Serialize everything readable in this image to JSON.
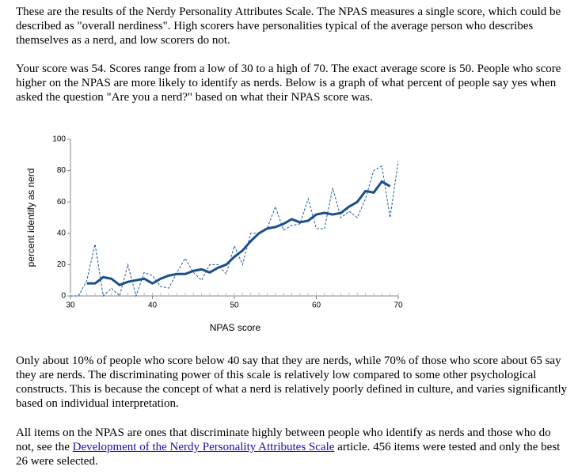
{
  "paragraphs": [
    "These are the results of the Nerdy Personality Attributes Scale. The NPAS measures a single score, which could be described as \"overall nerdiness\". High scorers have personalities typical of the average person who describes themselves as a nerd, and low scorers do not.",
    "Your score was 54. Scores range from a low of 30 to a high of 70. The exact average score is 50. People who score higher on the NPAS are more likely to identify as nerds. Below is a graph of what percent of people say yes when asked the question \"Are you a nerd?\" based on what their NPAS score was.",
    "Only about 10% of people who score below 40 say that they are nerds, while 70% of those who score about 65 say they are nerds. The discriminating power of this scale is relatively low compared to some other psychological constructs. This is because the concept of what a nerd is relatively poorly defined in culture, and varies significantly based on individual interpretation.",
    {
      "before": "All items on the NPAS are ones that discriminate highly between people who identify as nerds and those who do not, see the ",
      "link": "Development of the Nerdy Personality Attributes Scale",
      "after": " article. 456 items were tested and only the best 26 were selected."
    }
  ],
  "chart_data": {
    "type": "line",
    "x_label": "NPAS score",
    "y_label": "percent identify as nerd",
    "x": [
      30,
      31,
      32,
      33,
      34,
      35,
      36,
      37,
      38,
      39,
      40,
      41,
      42,
      43,
      44,
      45,
      46,
      47,
      48,
      49,
      50,
      51,
      52,
      53,
      54,
      55,
      56,
      57,
      58,
      59,
      60,
      61,
      62,
      63,
      64,
      65,
      66,
      67,
      68,
      69,
      70
    ],
    "series": [
      {
        "color": "#1f5a9a",
        "style": "dashed",
        "line_width": 1,
        "values": [
          0,
          0,
          10,
          33,
          0,
          5,
          0,
          20,
          0,
          15,
          13,
          6,
          5,
          15,
          24,
          15,
          10,
          20,
          20,
          14,
          32,
          20,
          40,
          40,
          43,
          57,
          42,
          45,
          46,
          62,
          43,
          43,
          69,
          50,
          54,
          50,
          62,
          80,
          83,
          50,
          86
        ]
      },
      {
        "color": "#1a4f8a",
        "style": "solid",
        "line_width": 3,
        "values": [
          null,
          null,
          8,
          8,
          12,
          11,
          7,
          9,
          10,
          11,
          8,
          11,
          13,
          14,
          14,
          16,
          17,
          15,
          18,
          20,
          25,
          29,
          35,
          40,
          43,
          44,
          46,
          49,
          47,
          48,
          52,
          53,
          52,
          53,
          57,
          60,
          67,
          66,
          73,
          70,
          null
        ]
      }
    ],
    "xlim": [
      30,
      70
    ],
    "ylim": [
      0,
      100
    ],
    "xticks": [
      30,
      40,
      50,
      60,
      70
    ],
    "yticks": [
      0,
      20,
      40,
      60,
      80,
      100
    ],
    "minor_x_ticks": true
  }
}
